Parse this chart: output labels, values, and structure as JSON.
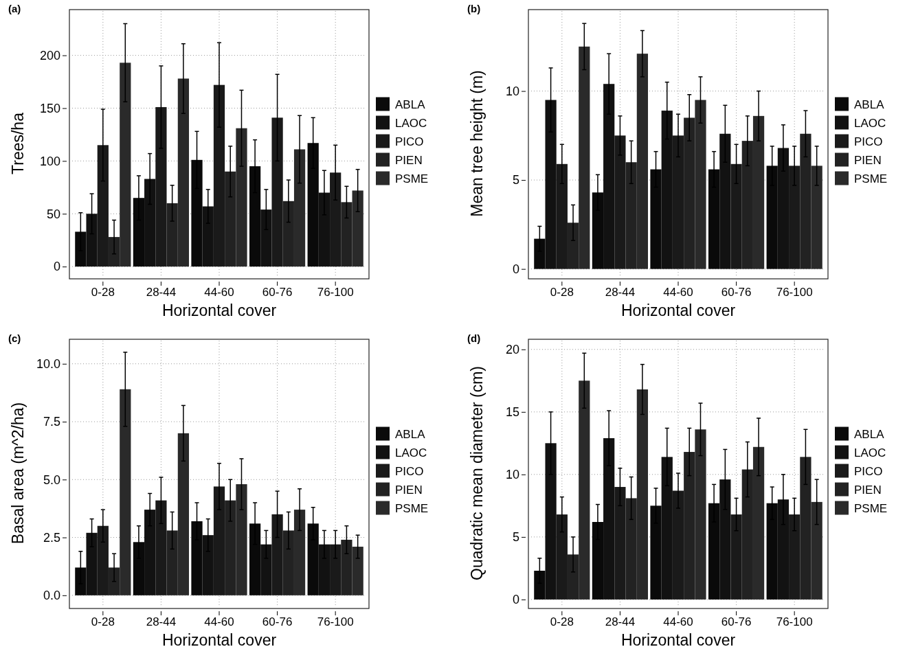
{
  "chart_data": [
    {
      "type": "bar",
      "title": "(a)",
      "xlabel": "Horizontal cover",
      "ylabel": "Trees/ha",
      "categories": [
        "0-28",
        "28-44",
        "44-60",
        "60-76",
        "76-100"
      ],
      "ylim": [
        -9,
        242
      ],
      "yticks": [
        0,
        50,
        100,
        150,
        200
      ],
      "grid": true,
      "legend": "right",
      "series": [
        {
          "name": "ABLA",
          "color": "#0a0a0a",
          "values": [
            33,
            65,
            101,
            95,
            117
          ],
          "errors": [
            18,
            21,
            27,
            25,
            24
          ]
        },
        {
          "name": "LAOC",
          "color": "#121212",
          "values": [
            50,
            83,
            57,
            54,
            70
          ],
          "errors": [
            19,
            24,
            16,
            19,
            21
          ]
        },
        {
          "name": "PICO",
          "color": "#1a1a1a",
          "values": [
            115,
            151,
            172,
            141,
            89
          ],
          "errors": [
            34,
            39,
            40,
            41,
            26
          ]
        },
        {
          "name": "PIEN",
          "color": "#222222",
          "values": [
            28,
            60,
            90,
            62,
            61
          ],
          "errors": [
            16,
            17,
            24,
            20,
            15
          ]
        },
        {
          "name": "PSME",
          "color": "#2a2a2a",
          "values": [
            193,
            178,
            131,
            111,
            72
          ],
          "errors": [
            37,
            33,
            36,
            32,
            20
          ]
        }
      ]
    },
    {
      "type": "bar",
      "title": "(b)",
      "xlabel": "Horizontal cover",
      "ylabel": "Mean tree height (m)",
      "categories": [
        "0-28",
        "28-44",
        "44-60",
        "60-76",
        "76-100"
      ],
      "ylim": [
        -0.4,
        14.5
      ],
      "yticks": [
        0,
        5,
        10
      ],
      "grid": true,
      "legend": "right",
      "series": [
        {
          "name": "ABLA",
          "color": "#0a0a0a",
          "values": [
            1.7,
            4.3,
            5.6,
            5.6,
            5.8
          ],
          "errors": [
            0.7,
            1.0,
            1.0,
            1.0,
            1.1
          ]
        },
        {
          "name": "LAOC",
          "color": "#121212",
          "values": [
            9.5,
            10.4,
            8.9,
            7.6,
            6.8
          ],
          "errors": [
            1.8,
            1.7,
            1.6,
            1.6,
            1.3
          ]
        },
        {
          "name": "PICO",
          "color": "#1a1a1a",
          "values": [
            5.9,
            7.5,
            7.5,
            5.9,
            5.8
          ],
          "errors": [
            1.1,
            1.1,
            1.2,
            1.1,
            1.1
          ]
        },
        {
          "name": "PIEN",
          "color": "#222222",
          "values": [
            2.6,
            6.0,
            8.5,
            7.2,
            7.6
          ],
          "errors": [
            1.0,
            1.2,
            1.3,
            1.4,
            1.3
          ]
        },
        {
          "name": "PSME",
          "color": "#2a2a2a",
          "values": [
            12.5,
            12.1,
            9.5,
            8.6,
            5.8
          ],
          "errors": [
            1.3,
            1.3,
            1.3,
            1.4,
            1.1
          ]
        }
      ]
    },
    {
      "type": "bar",
      "title": "(c)",
      "xlabel": "Horizontal cover",
      "ylabel": "Basal area (m^2/ha)",
      "categories": [
        "0-28",
        "28-44",
        "44-60",
        "60-76",
        "76-100"
      ],
      "ylim": [
        -0.45,
        11.0
      ],
      "yticks": [
        {
          "value": 0,
          "label": "0.0"
        },
        2.5,
        {
          "value": 5,
          "label": "5.0"
        },
        7.5,
        {
          "value": 10,
          "label": "10.0"
        }
      ],
      "grid": true,
      "legend": "right",
      "series": [
        {
          "name": "ABLA",
          "color": "#0a0a0a",
          "values": [
            1.2,
            2.3,
            3.2,
            3.1,
            3.1
          ],
          "errors": [
            0.7,
            0.7,
            0.8,
            0.9,
            0.7
          ]
        },
        {
          "name": "LAOC",
          "color": "#121212",
          "values": [
            2.7,
            3.7,
            2.6,
            2.2,
            2.2
          ],
          "errors": [
            0.6,
            0.7,
            0.7,
            0.6,
            0.6
          ]
        },
        {
          "name": "PICO",
          "color": "#1a1a1a",
          "values": [
            3.0,
            4.1,
            4.7,
            3.5,
            2.2
          ],
          "errors": [
            0.7,
            1.0,
            1.0,
            1.0,
            0.6
          ]
        },
        {
          "name": "PIEN",
          "color": "#222222",
          "values": [
            1.2,
            2.8,
            4.1,
            2.8,
            2.4
          ],
          "errors": [
            0.6,
            0.8,
            0.9,
            0.8,
            0.6
          ]
        },
        {
          "name": "PSME",
          "color": "#2a2a2a",
          "values": [
            8.9,
            7.0,
            4.8,
            3.7,
            2.1
          ],
          "errors": [
            1.6,
            1.2,
            1.1,
            0.9,
            0.5
          ]
        }
      ]
    },
    {
      "type": "bar",
      "title": "(d)",
      "xlabel": "Horizontal cover",
      "ylabel": "Quadratic mean diameter (cm)",
      "categories": [
        "0-28",
        "28-44",
        "44-60",
        "60-76",
        "76-100"
      ],
      "ylim": [
        -0.5,
        20.7
      ],
      "yticks": [
        0,
        5,
        10,
        15,
        20
      ],
      "grid": true,
      "legend": "right",
      "series": [
        {
          "name": "ABLA",
          "color": "#0a0a0a",
          "values": [
            2.3,
            6.2,
            7.5,
            7.7,
            7.7
          ],
          "errors": [
            1.0,
            1.4,
            1.4,
            1.5,
            1.3
          ]
        },
        {
          "name": "LAOC",
          "color": "#121212",
          "values": [
            12.5,
            12.9,
            11.4,
            9.6,
            8.0
          ],
          "errors": [
            2.5,
            2.2,
            2.3,
            2.4,
            2.0
          ]
        },
        {
          "name": "PICO",
          "color": "#1a1a1a",
          "values": [
            6.8,
            9.0,
            8.7,
            6.8,
            6.8
          ],
          "errors": [
            1.4,
            1.5,
            1.4,
            1.3,
            1.3
          ]
        },
        {
          "name": "PIEN",
          "color": "#222222",
          "values": [
            3.6,
            8.1,
            11.8,
            10.4,
            11.4
          ],
          "errors": [
            1.4,
            1.7,
            1.9,
            2.2,
            2.2
          ]
        },
        {
          "name": "PSME",
          "color": "#2a2a2a",
          "values": [
            17.5,
            16.8,
            13.6,
            12.2,
            7.8
          ],
          "errors": [
            2.2,
            2.0,
            2.1,
            2.3,
            1.8
          ]
        }
      ]
    }
  ]
}
